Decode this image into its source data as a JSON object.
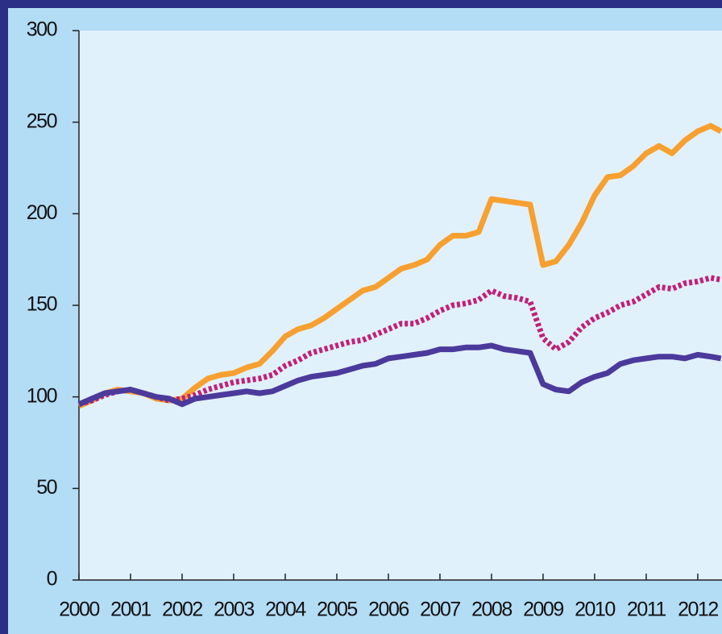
{
  "chart_data": {
    "type": "line",
    "x": [
      2000,
      2000.25,
      2000.5,
      2000.75,
      2001,
      2001.25,
      2001.5,
      2001.75,
      2002,
      2002.25,
      2002.5,
      2002.75,
      2003,
      2003.25,
      2003.5,
      2003.75,
      2004,
      2004.25,
      2004.5,
      2004.75,
      2005,
      2005.25,
      2005.5,
      2005.75,
      2006,
      2006.25,
      2006.5,
      2006.75,
      2007,
      2007.25,
      2007.5,
      2007.75,
      2008,
      2008.25,
      2008.5,
      2008.75,
      2009,
      2009.25,
      2009.5,
      2009.75,
      2010,
      2010.25,
      2010.5,
      2010.75,
      2011,
      2011.25,
      2011.5,
      2011.75,
      2012,
      2012.25,
      2012.45
    ],
    "series": [
      {
        "color": "#f7a030",
        "dash": false,
        "values": [
          95,
          98,
          102,
          104,
          103,
          102,
          99,
          98,
          99,
          105,
          110,
          112,
          113,
          116,
          118,
          125,
          133,
          137,
          139,
          143,
          148,
          153,
          158,
          160,
          165,
          170,
          172,
          175,
          183,
          188,
          188,
          190,
          208,
          207,
          206,
          205,
          172,
          174,
          183,
          195,
          210,
          220,
          221,
          226,
          233,
          237,
          233,
          240,
          245,
          248,
          245
        ]
      },
      {
        "color": "#c0207a",
        "dash": true,
        "values": [
          96,
          98,
          101,
          103,
          104,
          102,
          100,
          98,
          99,
          101,
          104,
          106,
          108,
          109,
          110,
          112,
          117,
          120,
          124,
          126,
          128,
          130,
          131,
          134,
          137,
          140,
          140,
          143,
          147,
          150,
          151,
          153,
          158,
          155,
          154,
          152,
          132,
          126,
          130,
          138,
          143,
          146,
          150,
          152,
          156,
          160,
          159,
          162,
          163,
          165,
          164
        ]
      },
      {
        "color": "#4b3a9c",
        "dash": false,
        "values": [
          96,
          99,
          102,
          103,
          104,
          102,
          100,
          99,
          96,
          99,
          100,
          101,
          102,
          103,
          102,
          103,
          106,
          109,
          111,
          112,
          113,
          115,
          117,
          118,
          121,
          122,
          123,
          124,
          126,
          126,
          127,
          127,
          128,
          126,
          125,
          124,
          107,
          104,
          103,
          108,
          111,
          113,
          118,
          120,
          121,
          122,
          122,
          121,
          123,
          122,
          121
        ]
      }
    ],
    "xlim": [
      2000,
      2012.47
    ],
    "xticks": [
      2000,
      2001,
      2002,
      2003,
      2004,
      2005,
      2006,
      2007,
      2008,
      2009,
      2010,
      2011,
      2012
    ],
    "ylim": [
      0,
      300
    ],
    "yticks": [
      0,
      50,
      100,
      150,
      200,
      250,
      300
    ]
  }
}
